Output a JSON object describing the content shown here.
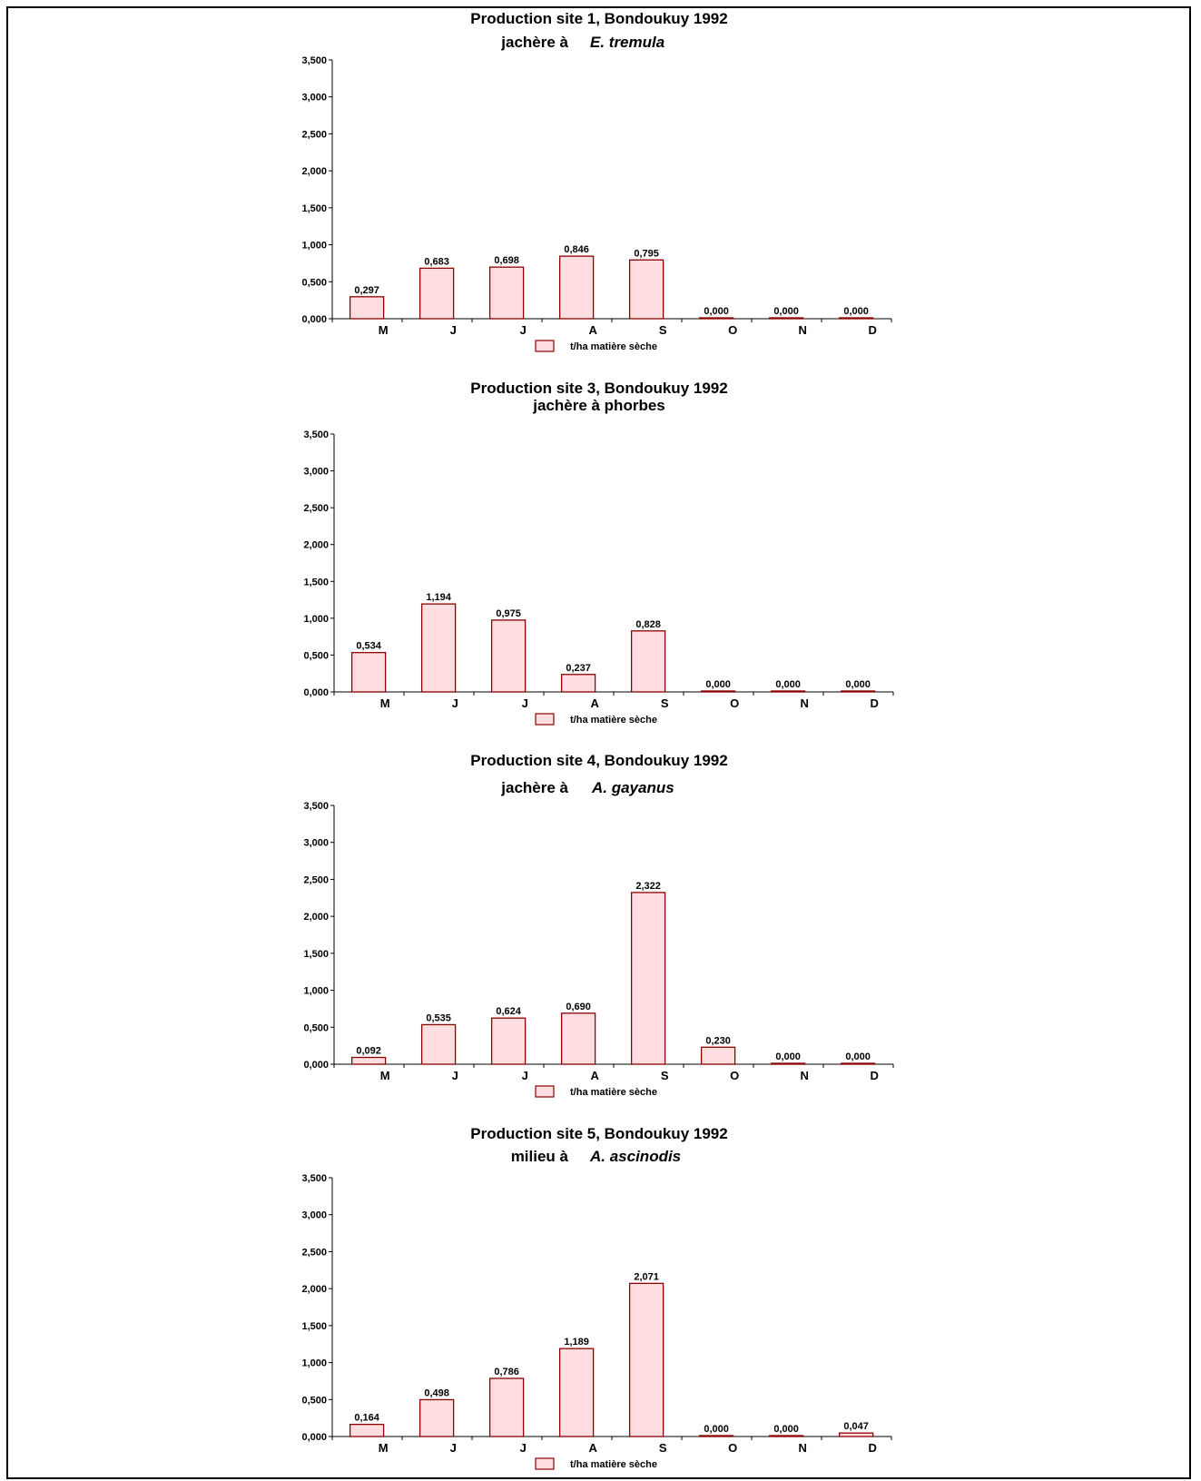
{
  "colors": {
    "bar_fill": "#ffdde0",
    "bar_stroke": "#8b0000",
    "axis": "#000000"
  },
  "chart_data": [
    {
      "type": "bar",
      "title": "Production site 1, Bondoukuy 1992",
      "subtitle": {
        "prefix": "jachère à",
        "species": "E. tremula"
      },
      "y_ticks": [
        "0,000",
        "0,500",
        "1,000",
        "1,500",
        "2,000",
        "2,500",
        "3,000",
        "3,500"
      ],
      "ylim": [
        0,
        3.5
      ],
      "x_ticks": [
        "M",
        "J",
        "J",
        "A",
        "S",
        "O",
        "N",
        "D"
      ],
      "series": [
        {
          "name": "t/ha matière sèche",
          "values": [
            0.297,
            0.683,
            0.698,
            0.846,
            0.795,
            0.0,
            0.0,
            0.0
          ],
          "labels": [
            "0,297",
            "0,683",
            "0,698",
            "0,846",
            "0,795",
            "0,000",
            "0,000",
            "0,000"
          ]
        }
      ],
      "legend": "bottom-center"
    },
    {
      "type": "bar",
      "title": "Production site 3, Bondoukuy 1992",
      "subtitle": {
        "prefix": "jachère à phorbes",
        "species": ""
      },
      "y_ticks": [
        "0,000",
        "0,500",
        "1,000",
        "1,500",
        "2,000",
        "2,500",
        "3,000",
        "3,500"
      ],
      "ylim": [
        0,
        3.5
      ],
      "x_ticks": [
        "M",
        "J",
        "J",
        "A",
        "S",
        "O",
        "N",
        "D"
      ],
      "series": [
        {
          "name": "t/ha matière sèche",
          "values": [
            0.534,
            1.194,
            0.975,
            0.237,
            0.828,
            0.0,
            0.0,
            0.0
          ],
          "labels": [
            "0,534",
            "1,194",
            "0,975",
            "0,237",
            "0,828",
            "0,000",
            "0,000",
            "0,000"
          ]
        }
      ],
      "legend": "bottom-center"
    },
    {
      "type": "bar",
      "title": "Production site 4, Bondoukuy 1992",
      "subtitle": {
        "prefix": "jachère à",
        "species": "A. gayanus"
      },
      "y_ticks": [
        "0,000",
        "0,500",
        "1,000",
        "1,500",
        "2,000",
        "2,500",
        "3,000",
        "3,500"
      ],
      "ylim": [
        0,
        3.5
      ],
      "x_ticks": [
        "M",
        "J",
        "J",
        "A",
        "S",
        "O",
        "N",
        "D"
      ],
      "series": [
        {
          "name": "t/ha matière sèche",
          "values": [
            0.092,
            0.535,
            0.624,
            0.69,
            2.322,
            0.23,
            0.0,
            0.0
          ],
          "labels": [
            "0,092",
            "0,535",
            "0,624",
            "0,690",
            "2,322",
            "0,230",
            "0,000",
            "0,000"
          ]
        }
      ],
      "legend": "bottom-center"
    },
    {
      "type": "bar",
      "title": "Production site 5, Bondoukuy 1992",
      "subtitle": {
        "prefix": "milieu à",
        "species": "A. ascinodis"
      },
      "y_ticks": [
        "0,000",
        "0,500",
        "1,000",
        "1,500",
        "2,000",
        "2,500",
        "3,000",
        "3,500"
      ],
      "ylim": [
        0,
        3.5
      ],
      "x_ticks": [
        "M",
        "J",
        "J",
        "A",
        "S",
        "O",
        "N",
        "D"
      ],
      "series": [
        {
          "name": "t/ha matière sèche",
          "values": [
            0.164,
            0.498,
            0.786,
            1.189,
            2.071,
            0.0,
            0.0,
            0.047
          ],
          "labels": [
            "0,164",
            "0,498",
            "0,786",
            "1,189",
            "2,071",
            "0,000",
            "0,000",
            "0,047"
          ]
        }
      ],
      "legend": "bottom-center"
    }
  ]
}
